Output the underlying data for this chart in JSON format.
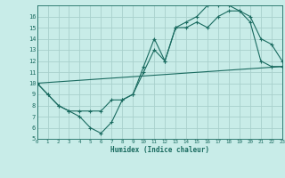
{
  "xlabel": "Humidex (Indice chaleur)",
  "bg_color": "#c8ece8",
  "grid_color": "#a8d0cc",
  "line_color": "#1a6b60",
  "xlim": [
    0,
    23
  ],
  "ylim": [
    5,
    17
  ],
  "xticks": [
    0,
    1,
    2,
    3,
    4,
    5,
    6,
    7,
    8,
    9,
    10,
    11,
    12,
    13,
    14,
    15,
    16,
    17,
    18,
    19,
    20,
    21,
    22,
    23
  ],
  "yticks": [
    5,
    6,
    7,
    8,
    9,
    10,
    11,
    12,
    13,
    14,
    15,
    16
  ],
  "line1_x": [
    0,
    1,
    2,
    3,
    4,
    5,
    6,
    7,
    8,
    9,
    10,
    11,
    12,
    13,
    14,
    15,
    16,
    17,
    18,
    19,
    20,
    21,
    22,
    23
  ],
  "line1_y": [
    10,
    9,
    8,
    7.5,
    7,
    6,
    5.5,
    6.5,
    8.5,
    9,
    11,
    13,
    12,
    15,
    15,
    15.5,
    15,
    16,
    16.5,
    16.5,
    15.5,
    12,
    11.5,
    11.5
  ],
  "line2_x": [
    0,
    1,
    2,
    3,
    4,
    5,
    6,
    7,
    8,
    9,
    10,
    11,
    12,
    13,
    14,
    15,
    16,
    17,
    18,
    19,
    20,
    21,
    22,
    23
  ],
  "line2_y": [
    10,
    9,
    8,
    7.5,
    7.5,
    7.5,
    7.5,
    8.5,
    8.5,
    9,
    11.5,
    14,
    12,
    15,
    15.5,
    16,
    17,
    17,
    17,
    16.5,
    16,
    14,
    13.5,
    12
  ],
  "line3_x": [
    0,
    23
  ],
  "line3_y": [
    10,
    11.5
  ]
}
